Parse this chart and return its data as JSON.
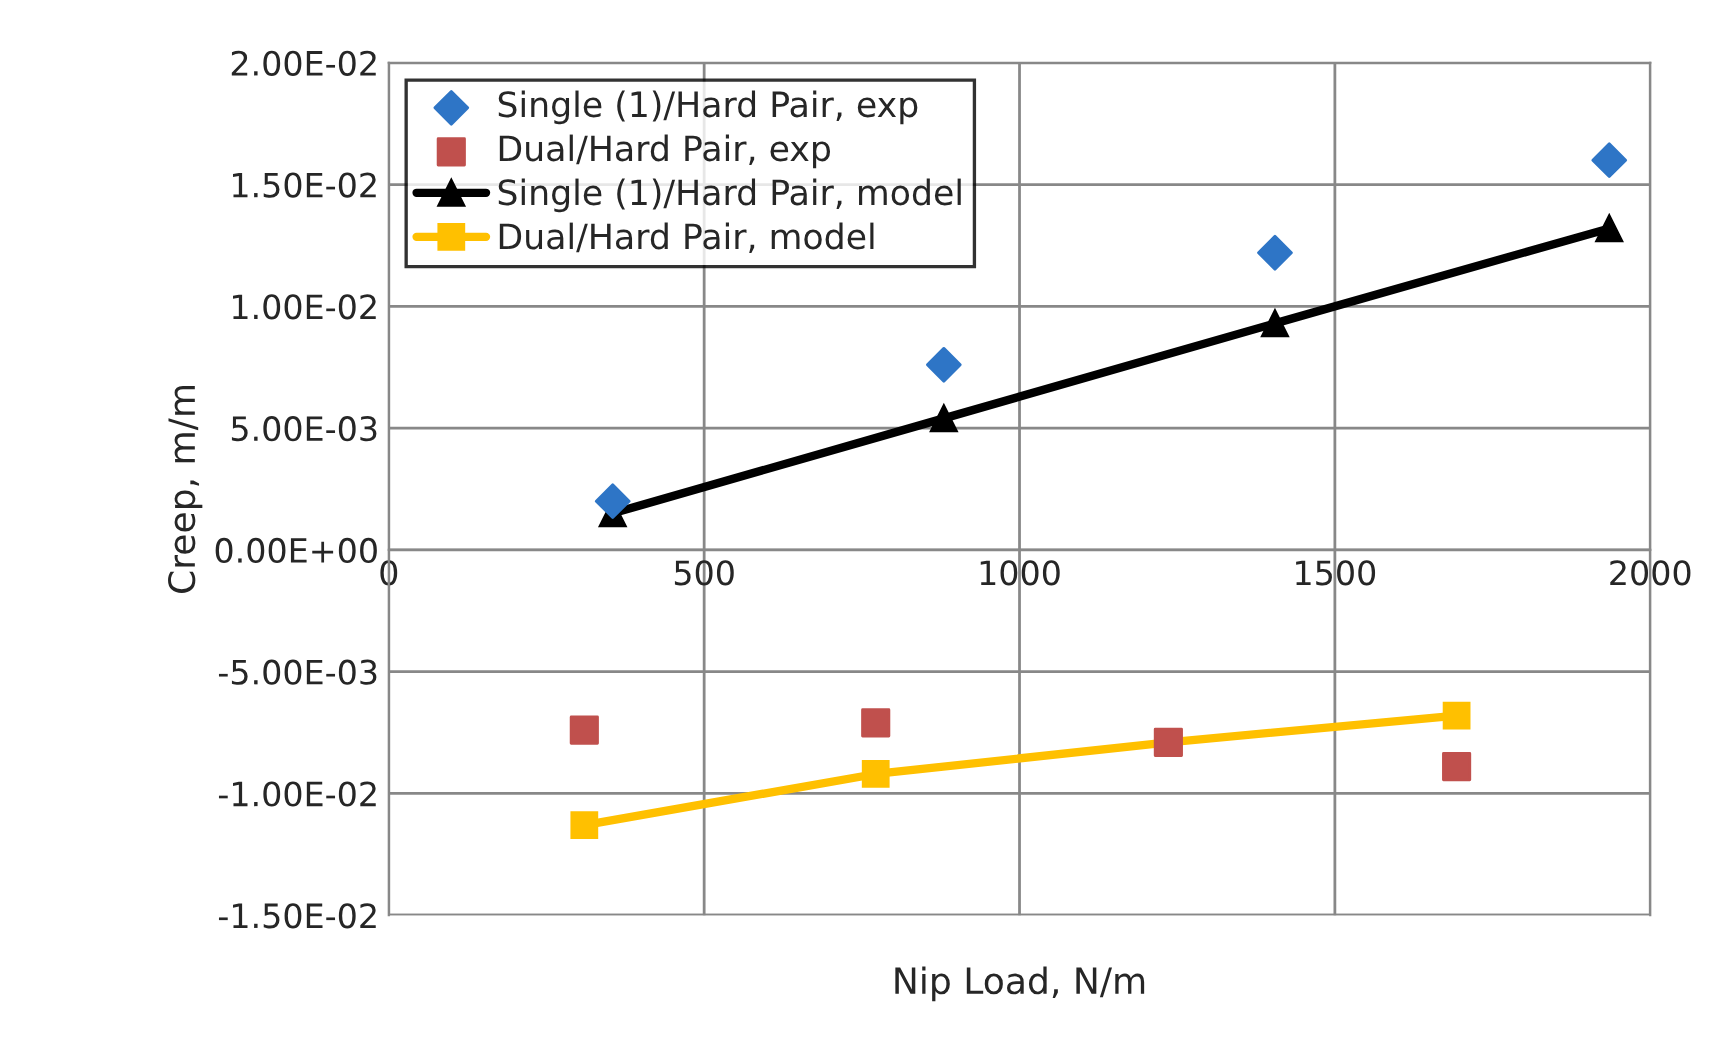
{
  "chart_data": {
    "type": "scatter",
    "xlabel": "Nip Load, N/m",
    "ylabel": "Creep, m/m",
    "xlim": [
      0,
      2000
    ],
    "xticks": [
      0,
      500,
      1000,
      1500,
      2000
    ],
    "ylim": [
      -0.015,
      0.02
    ],
    "yticks": [
      {
        "value": -0.015,
        "label": "-1.50E-02"
      },
      {
        "value": -0.01,
        "label": "-1.00E-02"
      },
      {
        "value": -0.005,
        "label": "-5.00E-03"
      },
      {
        "value": 0,
        "label": "0.00E+00"
      },
      {
        "value": 0.005,
        "label": "5.00E-03"
      },
      {
        "value": 0.01,
        "label": "1.00E-02"
      },
      {
        "value": 0.015,
        "label": "1.50E-02"
      },
      {
        "value": 0.02,
        "label": "2.00E-02"
      }
    ],
    "grid": true,
    "legend": "top left",
    "series": [
      {
        "name": "Single (1)/Hard Pair, exp",
        "marker": "diamond",
        "color": "#2e75c6",
        "x": [
          355,
          880,
          1405,
          1935
        ],
        "values": [
          0.002,
          0.0076,
          0.0122,
          0.016
        ]
      },
      {
        "name": "Dual/Hard Pair, exp",
        "marker": "square",
        "color": "#c0504d",
        "x": [
          310,
          772,
          1236,
          1693
        ],
        "values": [
          -0.0074,
          -0.0071,
          -0.0079,
          -0.0089
        ]
      },
      {
        "name": "Single (1)/Hard Pair, model",
        "type": "line",
        "marker": "triangle",
        "line_style": "solid",
        "color": "#000000",
        "x": [
          355,
          880,
          1405,
          1935
        ],
        "values": [
          0.0015,
          0.0054,
          0.0093,
          0.0132
        ]
      },
      {
        "name": "Dual/Hard Pair, model",
        "type": "line",
        "marker": "square",
        "line_style": "solid",
        "color": "#ffc000",
        "x": [
          310,
          772,
          1236,
          1693
        ],
        "values": [
          -0.0113,
          -0.0092,
          -0.0079,
          -0.0068
        ]
      }
    ]
  }
}
